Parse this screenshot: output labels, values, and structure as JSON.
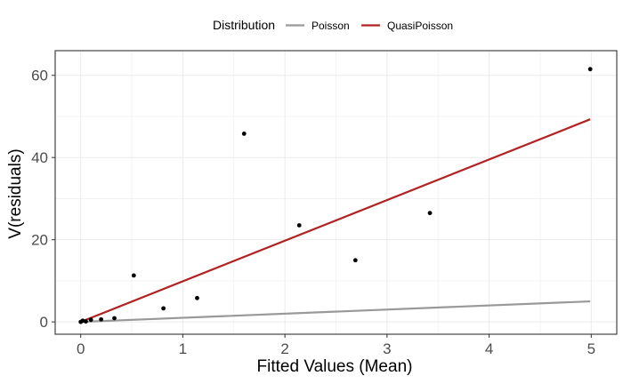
{
  "chart_data": {
    "type": "scatter",
    "xlabel": "Fitted Values (Mean)",
    "ylabel": "V(residuals)",
    "xlim": [
      -0.25,
      5.25
    ],
    "ylim": [
      -3,
      66
    ],
    "x_ticks": [
      0,
      1,
      2,
      3,
      4,
      5
    ],
    "y_ticks": [
      0,
      20,
      40,
      60
    ],
    "grid": true,
    "legend": {
      "title": "Distribution",
      "position": "top",
      "entries": [
        {
          "label": "Poisson",
          "color": "#999999"
        },
        {
          "label": "QuasiPoisson",
          "color": "#b22222"
        }
      ]
    },
    "points": [
      {
        "x": 0.0,
        "y": 0.0
      },
      {
        "x": 0.02,
        "y": 0.3
      },
      {
        "x": 0.05,
        "y": 0.1
      },
      {
        "x": 0.1,
        "y": 0.5
      },
      {
        "x": 0.2,
        "y": 0.6
      },
      {
        "x": 0.33,
        "y": 0.9
      },
      {
        "x": 0.52,
        "y": 11.3
      },
      {
        "x": 0.81,
        "y": 3.3
      },
      {
        "x": 1.14,
        "y": 5.8
      },
      {
        "x": 1.6,
        "y": 45.8
      },
      {
        "x": 2.14,
        "y": 23.5
      },
      {
        "x": 2.69,
        "y": 15.0
      },
      {
        "x": 3.42,
        "y": 26.5
      },
      {
        "x": 4.99,
        "y": 61.5
      }
    ],
    "series": [
      {
        "name": "Poisson",
        "color": "#999999",
        "x": [
          0,
          4.99
        ],
        "y": [
          0,
          4.99
        ]
      },
      {
        "name": "QuasiPoisson",
        "color": "#b22222",
        "x": [
          0,
          4.99
        ],
        "y": [
          0,
          49.3
        ]
      }
    ]
  }
}
